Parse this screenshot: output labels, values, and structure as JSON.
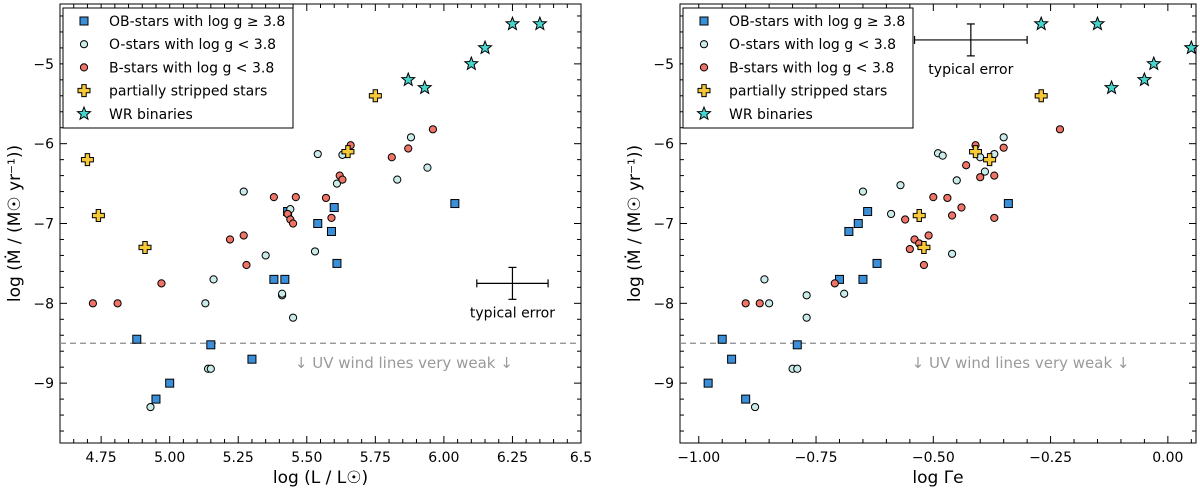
{
  "colors": {
    "ob_fill": "#3b8fd9",
    "o_fill": "#c9ebea",
    "b_fill": "#ef7467",
    "ps_fill": "#f8c936",
    "wr_fill": "#48d4cf",
    "edge": "#000000",
    "threshold_line": "#8a8a8a",
    "threshold_text": "#9a9a9a"
  },
  "chart_data": [
    {
      "type": "scatter",
      "panel": "left",
      "xlabel": "log (L / L☉)",
      "ylabel": "log (Ṁ / (M☉ yr⁻¹))",
      "xlim": [
        4.6,
        6.5
      ],
      "ylim": [
        -9.75,
        -4.25
      ],
      "xticks": [
        4.75,
        5.0,
        5.25,
        5.5,
        5.75,
        6.0,
        6.25,
        6.5
      ],
      "xtick_labels": [
        "4.75",
        "5.00",
        "5.25",
        "5.50",
        "5.75",
        "6.00",
        "6.25",
        "6.5"
      ],
      "yticks": [
        -9,
        -8,
        -7,
        -6,
        -5
      ],
      "ytick_labels": [
        "−9",
        "−8",
        "−7",
        "−6",
        "−5"
      ],
      "legend": [
        {
          "key": "ob",
          "label": "OB-stars with log g ≥ 3.8"
        },
        {
          "key": "o",
          "label": "O-stars with log g < 3.8"
        },
        {
          "key": "b",
          "label": "B-stars with log g < 3.8"
        },
        {
          "key": "ps",
          "label": "partially stripped stars"
        },
        {
          "key": "wr",
          "label": "WR binaries"
        }
      ],
      "threshold": {
        "y": -8.5,
        "label": "↓ UV wind lines very weak ↓"
      },
      "error_bar": {
        "x": 6.25,
        "y": -7.75,
        "xerr": 0.13,
        "yerr": 0.2,
        "label": "typical error"
      },
      "series": [
        {
          "key": "ob",
          "name": "OB-stars with log g ≥ 3.8",
          "marker": "square",
          "x": [
            4.88,
            4.95,
            5.0,
            5.15,
            5.3,
            5.38,
            5.42,
            5.43,
            5.54,
            5.59,
            5.6,
            5.61,
            6.04
          ],
          "y": [
            -8.45,
            -9.2,
            -9.0,
            -8.52,
            -8.7,
            -7.7,
            -7.7,
            -6.85,
            -7.0,
            -7.1,
            -6.8,
            -7.5,
            -6.75
          ]
        },
        {
          "key": "o",
          "name": "O-stars with log g < 3.8",
          "marker": "circle",
          "x": [
            4.93,
            5.13,
            5.14,
            5.15,
            5.16,
            5.27,
            5.35,
            5.41,
            5.41,
            5.44,
            5.45,
            5.53,
            5.54,
            5.61,
            5.63,
            5.83,
            5.88,
            5.94
          ],
          "y": [
            -9.3,
            -8.0,
            -8.82,
            -8.82,
            -7.7,
            -6.6,
            -7.4,
            -7.9,
            -7.88,
            -6.82,
            -8.18,
            -7.35,
            -6.13,
            -6.5,
            -6.14,
            -6.45,
            -5.92,
            -6.3
          ]
        },
        {
          "key": "b",
          "name": "B-stars with log g < 3.8",
          "marker": "circle",
          "x": [
            4.72,
            4.81,
            4.97,
            5.22,
            5.27,
            5.28,
            5.38,
            5.43,
            5.44,
            5.45,
            5.46,
            5.57,
            5.59,
            5.62,
            5.63,
            5.66,
            5.81,
            5.87,
            5.96
          ],
          "y": [
            -8.0,
            -8.0,
            -7.75,
            -7.2,
            -7.15,
            -7.52,
            -6.67,
            -6.88,
            -6.95,
            -7.0,
            -6.67,
            -6.68,
            -6.93,
            -6.4,
            -6.45,
            -6.02,
            -6.17,
            -6.06,
            -5.82
          ]
        },
        {
          "key": "ps",
          "name": "partially stripped stars",
          "marker": "plus",
          "x": [
            4.7,
            4.74,
            4.91,
            5.65,
            5.75
          ],
          "y": [
            -6.2,
            -6.9,
            -7.3,
            -6.1,
            -5.4
          ]
        },
        {
          "key": "wr",
          "name": "WR binaries",
          "marker": "star",
          "x": [
            5.87,
            5.93,
            6.1,
            6.15,
            6.25,
            6.35
          ],
          "y": [
            -5.2,
            -5.3,
            -5.0,
            -4.8,
            -4.5,
            -4.5
          ]
        }
      ]
    },
    {
      "type": "scatter",
      "panel": "right",
      "xlabel": "log Γe",
      "ylabel": "log (Ṁ / (M☉ yr⁻¹))",
      "xlim": [
        -1.04,
        0.06
      ],
      "ylim": [
        -9.75,
        -4.25
      ],
      "xticks": [
        -1.0,
        -0.75,
        -0.5,
        -0.25,
        0.0
      ],
      "xtick_labels": [
        "−1.00",
        "−0.75",
        "−0.50",
        "−0.25",
        "0.00"
      ],
      "yticks": [
        -9,
        -8,
        -7,
        -6,
        -5
      ],
      "ytick_labels": [
        "−9",
        "−8",
        "−7",
        "−6",
        "−5"
      ],
      "legend": [
        {
          "key": "ob",
          "label": "OB-stars with log g ≥ 3.8"
        },
        {
          "key": "o",
          "label": "O-stars with log g < 3.8"
        },
        {
          "key": "b",
          "label": "B-stars with log g < 3.8"
        },
        {
          "key": "ps",
          "label": "partially stripped stars"
        },
        {
          "key": "wr",
          "label": "WR binaries"
        }
      ],
      "threshold": {
        "y": -8.5,
        "label": "↓ UV wind lines very weak ↓"
      },
      "error_bar": {
        "x": -0.42,
        "y": -4.7,
        "xerr": 0.12,
        "yerr": 0.2,
        "label": "typical error"
      },
      "series": [
        {
          "key": "ob",
          "name": "OB-stars with log g ≥ 3.8",
          "marker": "square",
          "x": [
            -0.98,
            -0.95,
            -0.93,
            -0.9,
            -0.79,
            -0.7,
            -0.68,
            -0.66,
            -0.65,
            -0.64,
            -0.62,
            -0.34
          ],
          "y": [
            -9.0,
            -8.45,
            -8.7,
            -9.2,
            -8.52,
            -7.7,
            -7.1,
            -7.0,
            -7.7,
            -6.85,
            -7.5,
            -6.75
          ]
        },
        {
          "key": "o",
          "name": "O-stars with log g < 3.8",
          "marker": "circle",
          "x": [
            -0.88,
            -0.86,
            -0.85,
            -0.8,
            -0.79,
            -0.77,
            -0.77,
            -0.69,
            -0.65,
            -0.59,
            -0.57,
            -0.49,
            -0.48,
            -0.46,
            -0.45,
            -0.4,
            -0.39,
            -0.37,
            -0.35
          ],
          "y": [
            -9.3,
            -7.7,
            -8.0,
            -8.82,
            -8.82,
            -7.9,
            -8.18,
            -7.88,
            -6.6,
            -6.88,
            -6.52,
            -6.12,
            -6.15,
            -7.38,
            -6.46,
            -6.17,
            -6.35,
            -6.13,
            -5.92
          ]
        },
        {
          "key": "b",
          "name": "B-stars with log g < 3.8",
          "marker": "circle",
          "x": [
            -0.9,
            -0.87,
            -0.71,
            -0.56,
            -0.55,
            -0.54,
            -0.53,
            -0.52,
            -0.51,
            -0.5,
            -0.47,
            -0.46,
            -0.44,
            -0.43,
            -0.41,
            -0.4,
            -0.37,
            -0.37,
            -0.35,
            -0.23
          ],
          "y": [
            -8.0,
            -8.0,
            -7.75,
            -6.95,
            -7.32,
            -7.2,
            -7.25,
            -7.52,
            -7.15,
            -6.67,
            -6.68,
            -6.9,
            -6.8,
            -6.27,
            -6.02,
            -6.42,
            -6.4,
            -6.93,
            -6.05,
            -5.82
          ]
        },
        {
          "key": "ps",
          "name": "partially stripped stars",
          "marker": "plus",
          "x": [
            -0.53,
            -0.52,
            -0.41,
            -0.38,
            -0.27
          ],
          "y": [
            -6.9,
            -7.3,
            -6.1,
            -6.2,
            -5.4
          ]
        },
        {
          "key": "wr",
          "name": "WR binaries",
          "marker": "star",
          "x": [
            -0.27,
            -0.15,
            -0.12,
            -0.05,
            -0.03,
            0.05
          ],
          "y": [
            -4.5,
            -4.5,
            -5.3,
            -5.2,
            -5.0,
            -4.8
          ]
        }
      ]
    }
  ]
}
